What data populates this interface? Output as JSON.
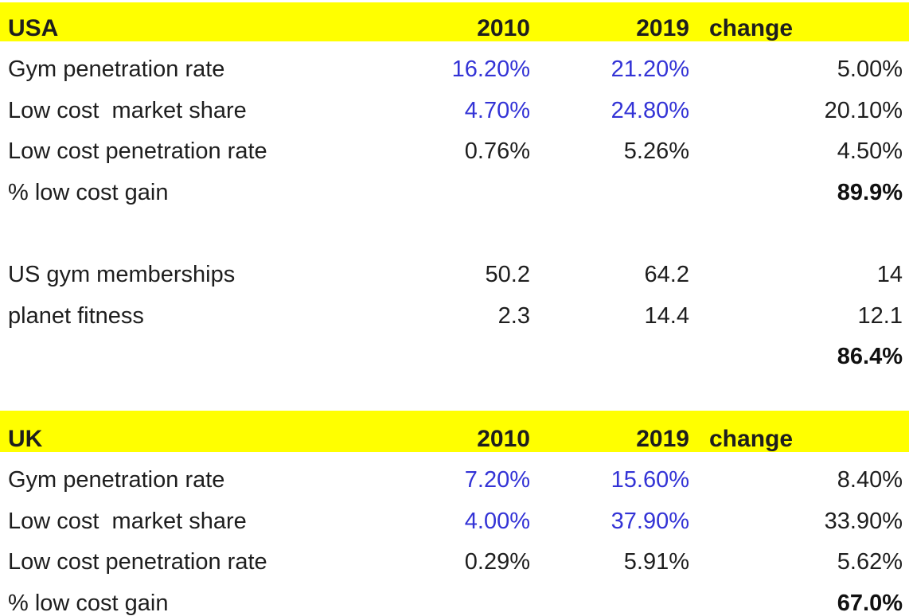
{
  "colors": {
    "header_bg": "#ffff00",
    "accent_blue": "#3333d6",
    "text": "#1e1e1e",
    "bg": "#ffffff"
  },
  "usa": {
    "title": "USA",
    "col_2010": "2010",
    "col_2019": "2019",
    "col_change": "change",
    "rows": {
      "gym_penetration": {
        "label": "Gym penetration rate",
        "v2010": "16.20%",
        "v2019": "21.20%",
        "change": "5.00%"
      },
      "low_cost_share": {
        "label": "Low cost  market share",
        "v2010": "4.70%",
        "v2019": "24.80%",
        "change": "20.10%"
      },
      "low_cost_penetration": {
        "label": "Low cost penetration rate",
        "v2010": "0.76%",
        "v2019": "5.26%",
        "change": "4.50%"
      },
      "low_cost_gain": {
        "label": "% low cost gain",
        "change": "89.9%"
      },
      "memberships": {
        "label": "US gym memberships",
        "v2010": "50.2",
        "v2019": "64.2",
        "change": "14"
      },
      "planet_fitness": {
        "label": "planet fitness",
        "v2010": "2.3",
        "v2019": "14.4",
        "change": "12.1"
      },
      "memberships_gain": {
        "change": "86.4%"
      }
    }
  },
  "uk": {
    "title": "UK",
    "col_2010": "2010",
    "col_2019": "2019",
    "col_change": "change",
    "rows": {
      "gym_penetration": {
        "label": "Gym penetration rate",
        "v2010": "7.20%",
        "v2019": "15.60%",
        "change": "8.40%"
      },
      "low_cost_share": {
        "label": "Low cost  market share",
        "v2010": "4.00%",
        "v2019": "37.90%",
        "change": "33.90%"
      },
      "low_cost_penetration": {
        "label": "Low cost penetration rate",
        "v2010": "0.29%",
        "v2019": "5.91%",
        "change": "5.62%"
      },
      "low_cost_gain": {
        "label": "% low cost gain",
        "change": "67.0%"
      }
    }
  }
}
